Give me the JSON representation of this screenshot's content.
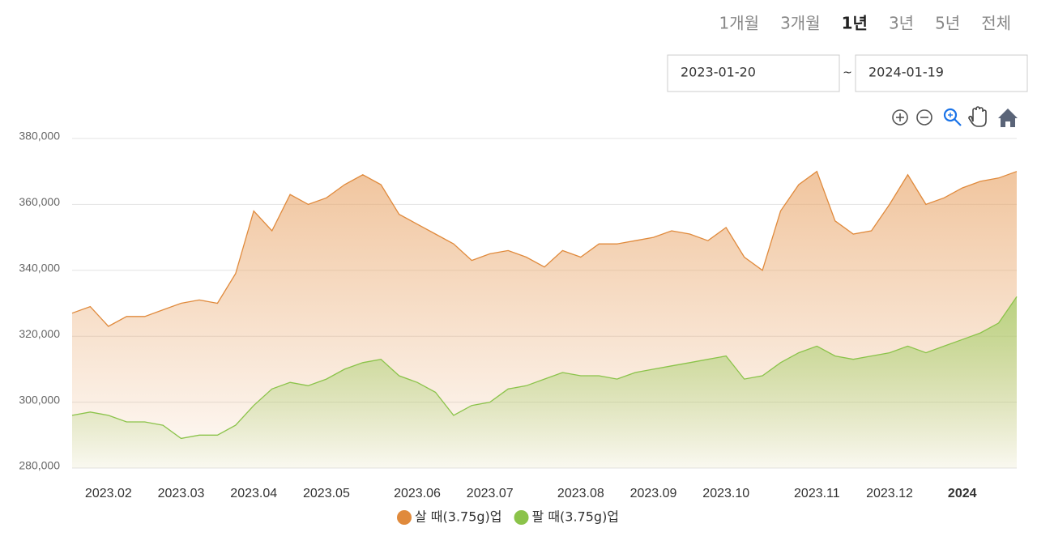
{
  "controls": {
    "periods": [
      "1개월",
      "3개월",
      "1년",
      "3년",
      "5년",
      "전체"
    ],
    "selected_period": 2,
    "start_date": "2023-01-20",
    "separator": "~",
    "end_date": "2024-01-19"
  },
  "chart_data": {
    "type": "area",
    "categories": [
      null,
      null,
      "2023.02",
      null,
      null,
      null,
      "2023.03",
      null,
      null,
      null,
      "2023.04",
      null,
      null,
      null,
      "2023.05",
      null,
      null,
      null,
      null,
      "2023.06",
      null,
      null,
      null,
      "2023.07",
      null,
      null,
      null,
      null,
      "2023.08",
      null,
      null,
      null,
      "2023.09",
      null,
      null,
      null,
      "2023.10",
      null,
      null,
      null,
      null,
      "2023.11",
      null,
      null,
      null,
      "2023.12",
      null,
      null,
      null,
      "2024",
      null,
      null,
      null
    ],
    "series": [
      {
        "name": "살 때(3.75g)업",
        "color": "#e08a3c",
        "values": [
          327000,
          329000,
          323000,
          326000,
          326000,
          328000,
          330000,
          331000,
          330000,
          339000,
          358000,
          352000,
          363000,
          360000,
          362000,
          366000,
          369000,
          366000,
          357000,
          354000,
          351000,
          348000,
          343000,
          345000,
          346000,
          344000,
          341000,
          346000,
          344000,
          348000,
          348000,
          349000,
          350000,
          352000,
          351000,
          349000,
          353000,
          344000,
          340000,
          358000,
          366000,
          370000,
          355000,
          351000,
          352000,
          360000,
          369000,
          360000,
          362000,
          365000,
          367000,
          368000,
          370000
        ]
      },
      {
        "name": "팔 때(3.75g)업",
        "color": "#8bc34a",
        "values": [
          296000,
          297000,
          296000,
          294000,
          294000,
          293000,
          289000,
          290000,
          290000,
          293000,
          299000,
          304000,
          306000,
          305000,
          307000,
          310000,
          312000,
          313000,
          308000,
          306000,
          303000,
          296000,
          299000,
          300000,
          304000,
          305000,
          307000,
          309000,
          308000,
          308000,
          307000,
          309000,
          310000,
          311000,
          312000,
          313000,
          314000,
          307000,
          308000,
          312000,
          315000,
          317000,
          314000,
          313000,
          314000,
          315000,
          317000,
          315000,
          317000,
          319000,
          321000,
          324000,
          332000
        ]
      }
    ],
    "ylim": [
      280000,
      380000
    ],
    "yticks": [
      {
        "value": 280000,
        "label": "280,000"
      },
      {
        "value": 300000,
        "label": "300,000"
      },
      {
        "value": 320000,
        "label": "320,000"
      },
      {
        "value": 340000,
        "label": "340,000"
      },
      {
        "value": 360000,
        "label": "360,000"
      },
      {
        "value": 380000,
        "label": "380,000"
      }
    ],
    "grid": true
  }
}
